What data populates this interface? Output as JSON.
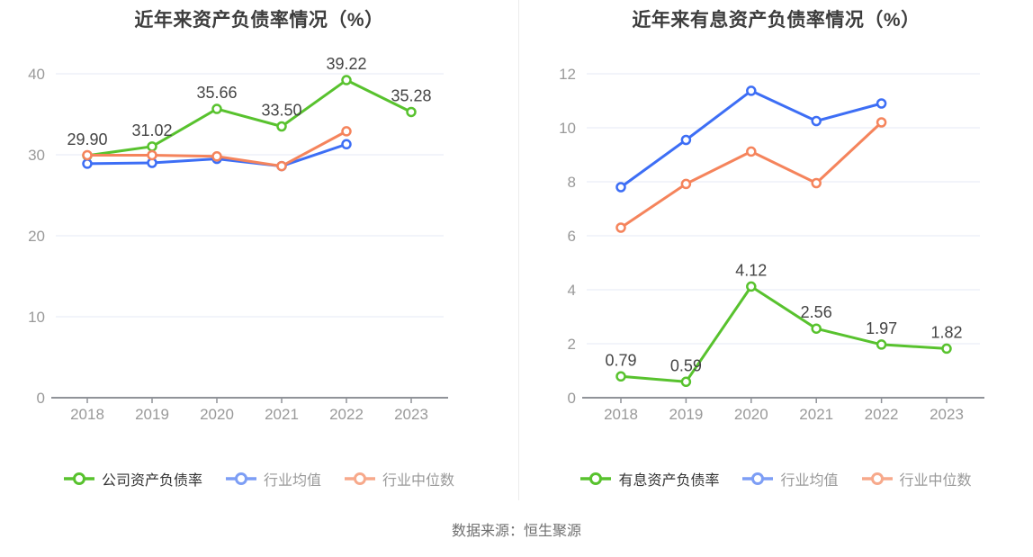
{
  "page": {
    "source_note": "数据来源：恒生聚源"
  },
  "colors": {
    "green": "#58c22e",
    "blue": "#3d6ef5",
    "orange": "#f5845c",
    "blue_light": "#7d9ef5",
    "orange_light": "#f7a98b",
    "grid": "#e9edf6",
    "axis": "#909399",
    "axis_label": "#999999",
    "data_label": "#444444"
  },
  "chart_data": [
    {
      "type": "line",
      "title": "近年来资产负债率情况（%）",
      "categories": [
        "2018",
        "2019",
        "2020",
        "2021",
        "2022",
        "2023"
      ],
      "y_ticks": [
        0,
        10,
        20,
        30,
        40
      ],
      "ylim": [
        0,
        44
      ],
      "xlabel": "",
      "ylabel": "",
      "grid": true,
      "legend_position": "bottom",
      "series": [
        {
          "name": "公司资产负债率",
          "color": "green",
          "legend_color": "green",
          "emphasis": true,
          "values": [
            29.9,
            31.02,
            35.66,
            33.5,
            39.22,
            35.28
          ],
          "labels": [
            "29.90",
            "31.02",
            "35.66",
            "33.50",
            "39.22",
            "35.28"
          ]
        },
        {
          "name": "行业均值",
          "color": "blue",
          "legend_color": "blue_light",
          "emphasis": false,
          "values": [
            28.9,
            29.0,
            29.5,
            28.6,
            31.3,
            null
          ],
          "labels": null
        },
        {
          "name": "行业中位数",
          "color": "orange",
          "legend_color": "orange_light",
          "emphasis": false,
          "values": [
            29.95,
            29.95,
            29.8,
            28.6,
            32.9,
            null
          ],
          "labels": null
        }
      ]
    },
    {
      "type": "line",
      "title": "近年来有息资产负债率情况（%）",
      "categories": [
        "2018",
        "2019",
        "2020",
        "2021",
        "2022",
        "2023"
      ],
      "y_ticks": [
        0,
        2,
        4,
        6,
        8,
        10,
        12
      ],
      "ylim": [
        0,
        13.3
      ],
      "xlabel": "",
      "ylabel": "",
      "grid": true,
      "legend_position": "bottom",
      "series": [
        {
          "name": "有息资产负债率",
          "color": "green",
          "legend_color": "green",
          "emphasis": true,
          "values": [
            0.79,
            0.59,
            4.12,
            2.56,
            1.97,
            1.82
          ],
          "labels": [
            "0.79",
            "0.59",
            "4.12",
            "2.56",
            "1.97",
            "1.82"
          ]
        },
        {
          "name": "行业均值",
          "color": "blue",
          "legend_color": "blue_light",
          "emphasis": false,
          "values": [
            7.8,
            9.55,
            11.37,
            10.25,
            10.9,
            null
          ],
          "labels": null
        },
        {
          "name": "行业中位数",
          "color": "orange",
          "legend_color": "orange_light",
          "emphasis": false,
          "values": [
            6.3,
            7.92,
            9.12,
            7.95,
            10.2,
            null
          ],
          "labels": null
        }
      ]
    }
  ]
}
